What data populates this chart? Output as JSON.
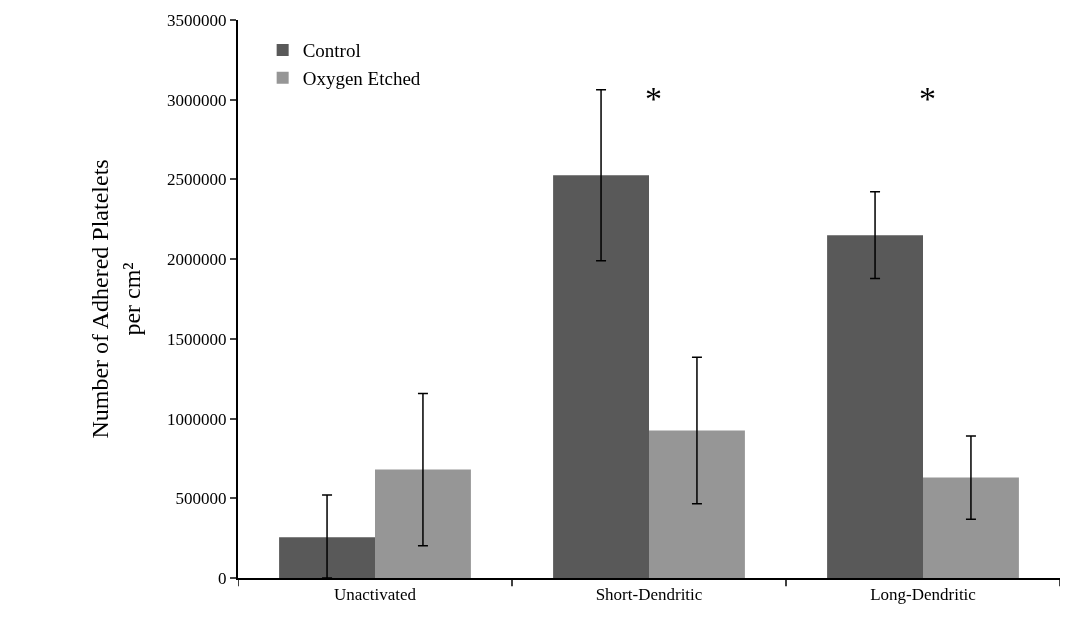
{
  "chart_data": {
    "type": "bar",
    "ylabel": "Number of Adhered Platelets\nper cm²",
    "categories": [
      "Unactivated",
      "Short-Dendritic",
      "Long-Dendritic"
    ],
    "series": [
      {
        "name": "Control",
        "color": "#595959",
        "values": [
          255000,
          2526000,
          2150000
        ],
        "errors": [
          [
            0,
            520000
          ],
          536000,
          272000
        ]
      },
      {
        "name": "Oxygen Etched",
        "color": "#969696",
        "values": [
          680000,
          925000,
          630000
        ],
        "errors": [
          478000,
          460000,
          261000
        ]
      }
    ],
    "ylim": [
      0,
      3500000
    ],
    "yticks": [
      0,
      500000,
      1000000,
      1500000,
      2000000,
      2500000,
      3000000,
      3500000
    ],
    "legend": "top left",
    "annotations": [
      "*",
      "*"
    ]
  }
}
